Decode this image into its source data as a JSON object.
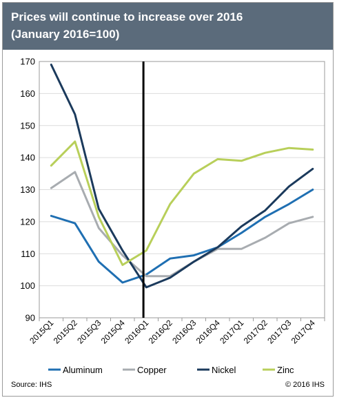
{
  "header": {
    "title_line1": "Prices will continue to increase over 2016",
    "title_line2": "(January 2016=100)"
  },
  "footer": {
    "source": "Source: IHS",
    "copyright": "© 2016 IHS"
  },
  "colors": {
    "title_bg": "#5b6b7b",
    "aluminum": "#1f6fb2",
    "copper": "#a8acb0",
    "nickel": "#1b3a5c",
    "zinc": "#b8cf5a",
    "divider": "#000000"
  },
  "chart_data": {
    "type": "line",
    "title": "Prices will continue to increase over 2016 (January 2016=100)",
    "categories": [
      "2015Q1",
      "2015Q2",
      "2015Q3",
      "2015Q4",
      "2016Q1",
      "2016Q2",
      "2016Q3",
      "2016Q4",
      "2017Q1",
      "2017Q2",
      "2017Q3",
      "2017Q4"
    ],
    "ylim": [
      90,
      170
    ],
    "yticks": [
      90,
      100,
      110,
      120,
      130,
      140,
      150,
      160,
      170
    ],
    "grid": true,
    "legend_position": "bottom",
    "vertical_marker_category": "2016Q1",
    "series": [
      {
        "name": "Aluminum",
        "color": "#1f6fb2",
        "values": [
          121.8,
          119.5,
          107.5,
          101.0,
          103.5,
          108.5,
          109.5,
          112.0,
          116.5,
          121.5,
          125.5,
          130.0
        ]
      },
      {
        "name": "Copper",
        "color": "#a8acb0",
        "values": [
          130.5,
          135.5,
          118.0,
          109.5,
          103.0,
          103.0,
          107.5,
          111.5,
          111.5,
          115.0,
          119.5,
          121.5
        ]
      },
      {
        "name": "Nickel",
        "color": "#1b3a5c",
        "values": [
          169.0,
          153.5,
          124.0,
          111.0,
          99.5,
          102.5,
          107.5,
          112.0,
          118.5,
          123.5,
          131.0,
          136.5
        ]
      },
      {
        "name": "Zinc",
        "color": "#b8cf5a",
        "values": [
          137.5,
          145.0,
          121.5,
          106.5,
          111.0,
          125.5,
          135.0,
          139.5,
          139.0,
          141.5,
          143.0,
          142.5
        ]
      }
    ]
  }
}
